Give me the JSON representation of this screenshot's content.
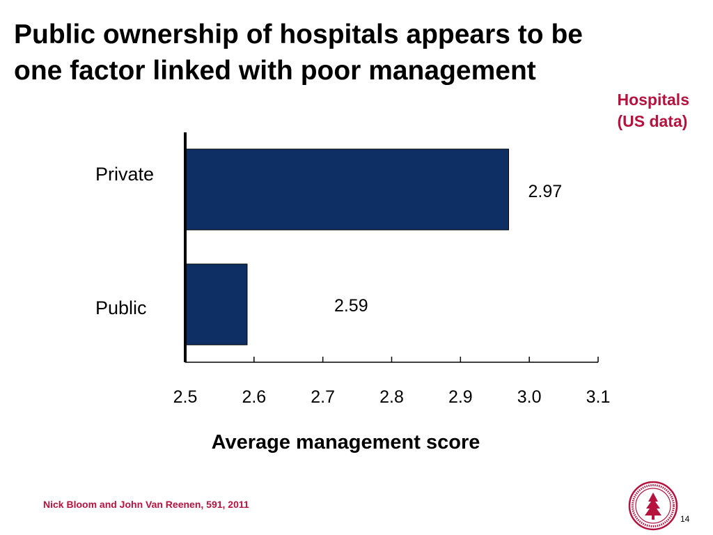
{
  "slide": {
    "title_lines": [
      "Public ownership of hospitals appears to be",
      "one factor linked with poor management"
    ],
    "subtitle_lines": [
      "Hospitals",
      "(US data)"
    ],
    "footer_credit": "Nick Bloom and John Van Reenen, 591, 2011",
    "page_number": "14",
    "seal_text": "LELAND STANFORD JUNIOR UNIVERSITY 1891"
  },
  "colors": {
    "bar": "#0d2f63",
    "accent": "#b5123e",
    "axis": "#000000"
  },
  "chart_data": {
    "type": "bar",
    "orientation": "horizontal",
    "title": "",
    "categories": [
      "Private",
      "Public"
    ],
    "values": [
      2.97,
      2.59
    ],
    "data_labels": [
      "2.97",
      "2.59"
    ],
    "xlabel": "Average management score",
    "ylabel": "",
    "xlim": [
      2.5,
      3.1
    ],
    "x_ticks": [
      "2.5",
      "2.6",
      "2.7",
      "2.8",
      "2.9",
      "3.0",
      "3.1"
    ],
    "grid": false,
    "legend": "none"
  }
}
